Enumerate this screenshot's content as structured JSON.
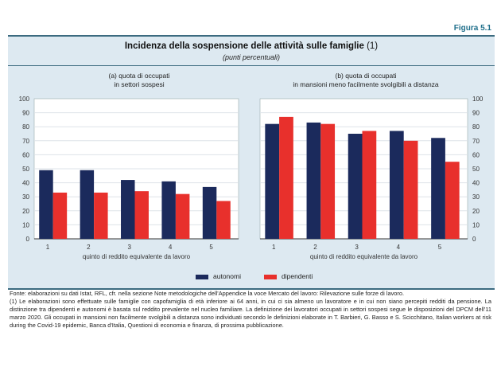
{
  "figure_label": "Figura 5.1",
  "title": "Incidenza della sospensione delle attività sulle famiglie",
  "title_note": "(1)",
  "subtitle": "(punti percentuali)",
  "colors": {
    "autonomi": "#1b2a5c",
    "dipendenti": "#e8302c"
  },
  "legend": {
    "autonomi": "autonomi",
    "dipendenti": "dipendenti"
  },
  "chart_data": [
    {
      "type": "bar",
      "title": "(a) quota di occupati\nin settori sospesi",
      "title_line1": "(a) quota di occupati",
      "title_line2": "in settori sospesi",
      "xlabel": "quinto di reddito equivalente da lavoro",
      "categories": [
        "1",
        "2",
        "3",
        "4",
        "5"
      ],
      "ylim": [
        0,
        100
      ],
      "yticks": [
        0,
        10,
        20,
        30,
        40,
        50,
        60,
        70,
        80,
        90,
        100
      ],
      "yaxis": "left",
      "grid": true,
      "series": [
        {
          "name": "autonomi",
          "values": [
            49,
            49,
            42,
            41,
            37
          ]
        },
        {
          "name": "dipendenti",
          "values": [
            33,
            33,
            34,
            32,
            27
          ]
        }
      ]
    },
    {
      "type": "bar",
      "title": "(b) quota di occupati\nin mansioni meno facilmente svolgibili a distanza",
      "title_line1": "(b) quota di occupati",
      "title_line2": "in mansioni meno facilmente svolgibili a distanza",
      "xlabel": "quinto di reddito equivalente da lavoro",
      "categories": [
        "1",
        "2",
        "3",
        "4",
        "5"
      ],
      "ylim": [
        0,
        100
      ],
      "yticks": [
        0,
        10,
        20,
        30,
        40,
        50,
        60,
        70,
        80,
        90,
        100
      ],
      "yaxis": "right",
      "grid": true,
      "series": [
        {
          "name": "autonomi",
          "values": [
            82,
            83,
            75,
            77,
            72
          ]
        },
        {
          "name": "dipendenti",
          "values": [
            87,
            82,
            77,
            70,
            55
          ]
        }
      ]
    }
  ],
  "notes": {
    "source": "Fonte: elaborazioni su dati Istat, RFL, cfr. nella sezione Note metodologiche dell'Appendice la voce Mercato del lavoro: Rilevazione sulle forze di lavoro.",
    "note1": "(1) Le elaborazioni sono effettuate sulle famiglie con capofamiglia di età inferiore ai 64 anni, in cui ci sia almeno un lavoratore e in cui non siano percepiti redditi da pensione. La distinzione tra dipendenti e autonomi è basata sul reddito prevalente nel nucleo familiare. La definizione dei lavoratori occupati in settori sospesi segue le disposizioni del DPCM dell'11 marzo 2020. Gli occupati in mansioni non facilmente svolgibili a distanza sono individuati secondo le definizioni elaborate in T. Barbieri, G. Basso e S. Scicchitano, Italian workers at risk during the Covid-19 epidemic, Banca d'Italia, Questioni di economia e finanza, di prossima pubblicazione."
  }
}
